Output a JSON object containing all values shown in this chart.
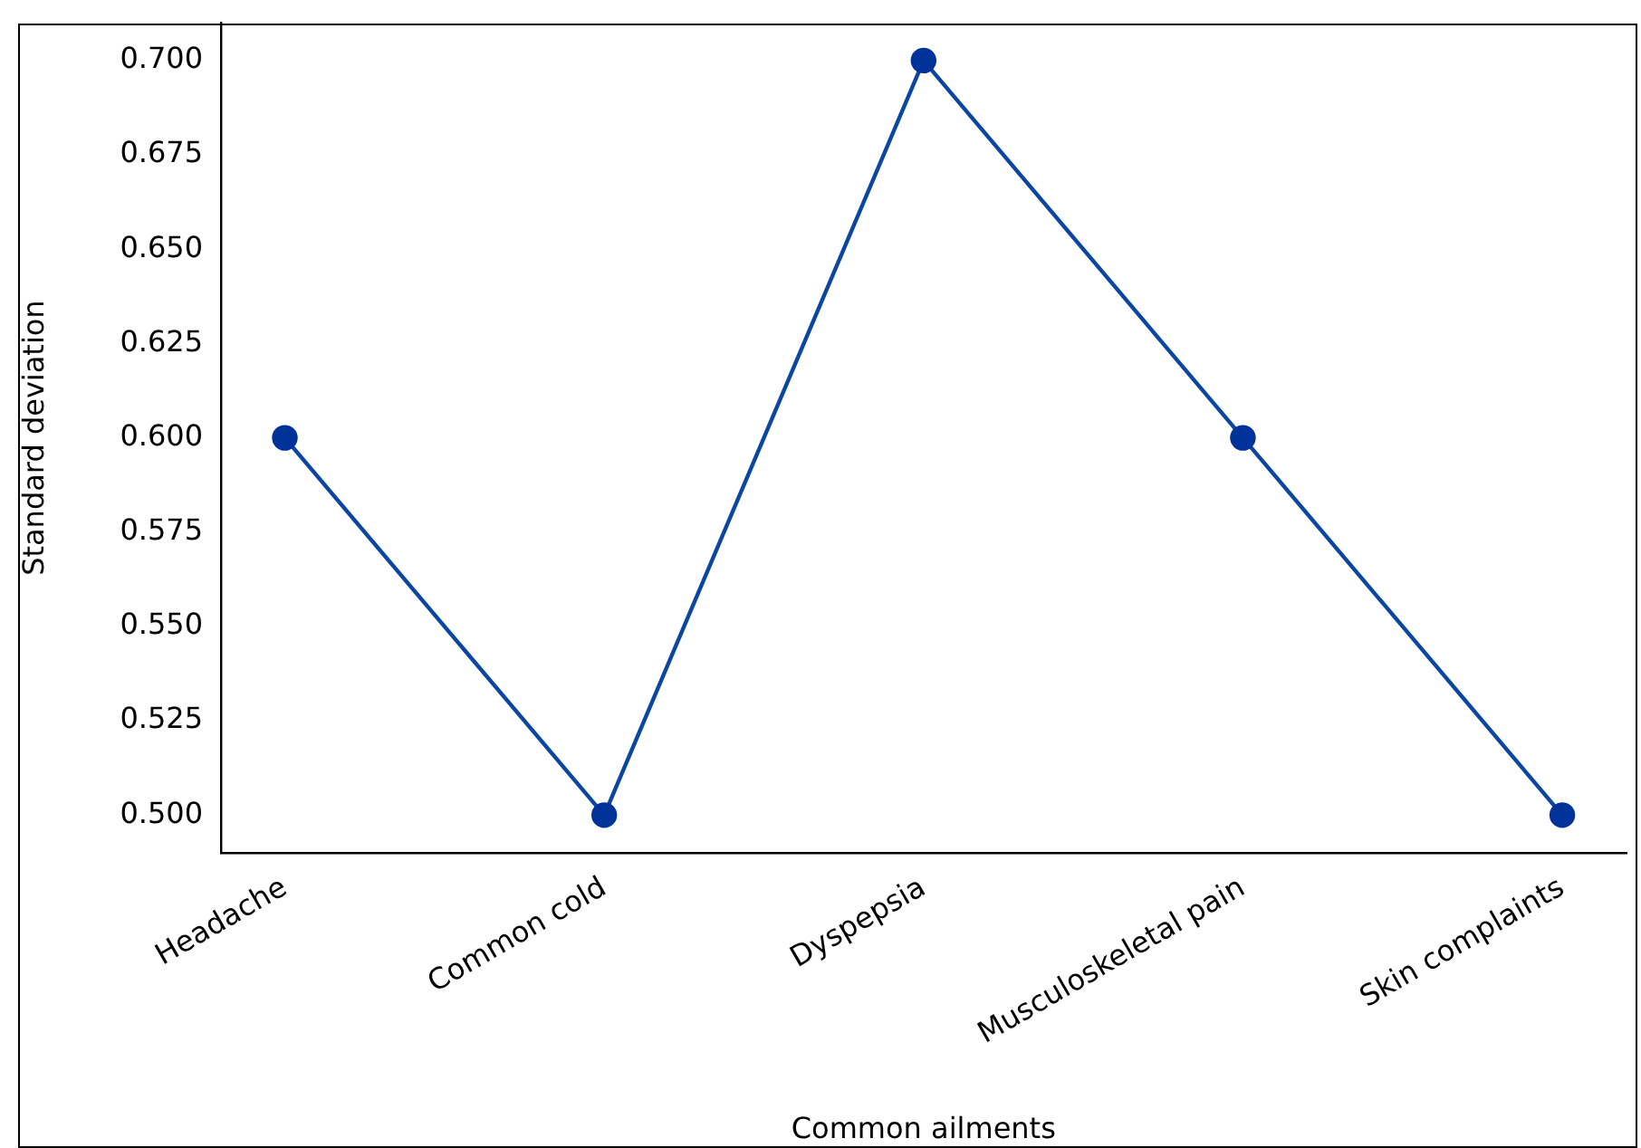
{
  "chart_data": {
    "type": "line",
    "xlabel": "Common ailments",
    "ylabel": "Standard deviation",
    "categories": [
      "Headache",
      "Common cold",
      "Dyspepsia",
      "Musculoskeletal pain",
      "Skin complaints"
    ],
    "series": [
      {
        "color": "#0b47a1",
        "values": [
          0.6,
          0.5,
          0.7,
          0.6,
          0.5
        ]
      }
    ],
    "ylim": [
      0.49,
      0.71
    ],
    "yticks": [
      {
        "value": 0.5,
        "label": "0.500"
      },
      {
        "value": 0.525,
        "label": "0.525"
      },
      {
        "value": 0.55,
        "label": "0.550"
      },
      {
        "value": 0.575,
        "label": "0.575"
      },
      {
        "value": 0.6,
        "label": "0.600"
      },
      {
        "value": 0.625,
        "label": "0.625"
      },
      {
        "value": 0.65,
        "label": "0.650"
      },
      {
        "value": 0.675,
        "label": "0.675"
      },
      {
        "value": 0.7,
        "label": "0.700"
      }
    ],
    "marker": "circle",
    "line_style": "solid",
    "grid": false,
    "legend": false
  }
}
